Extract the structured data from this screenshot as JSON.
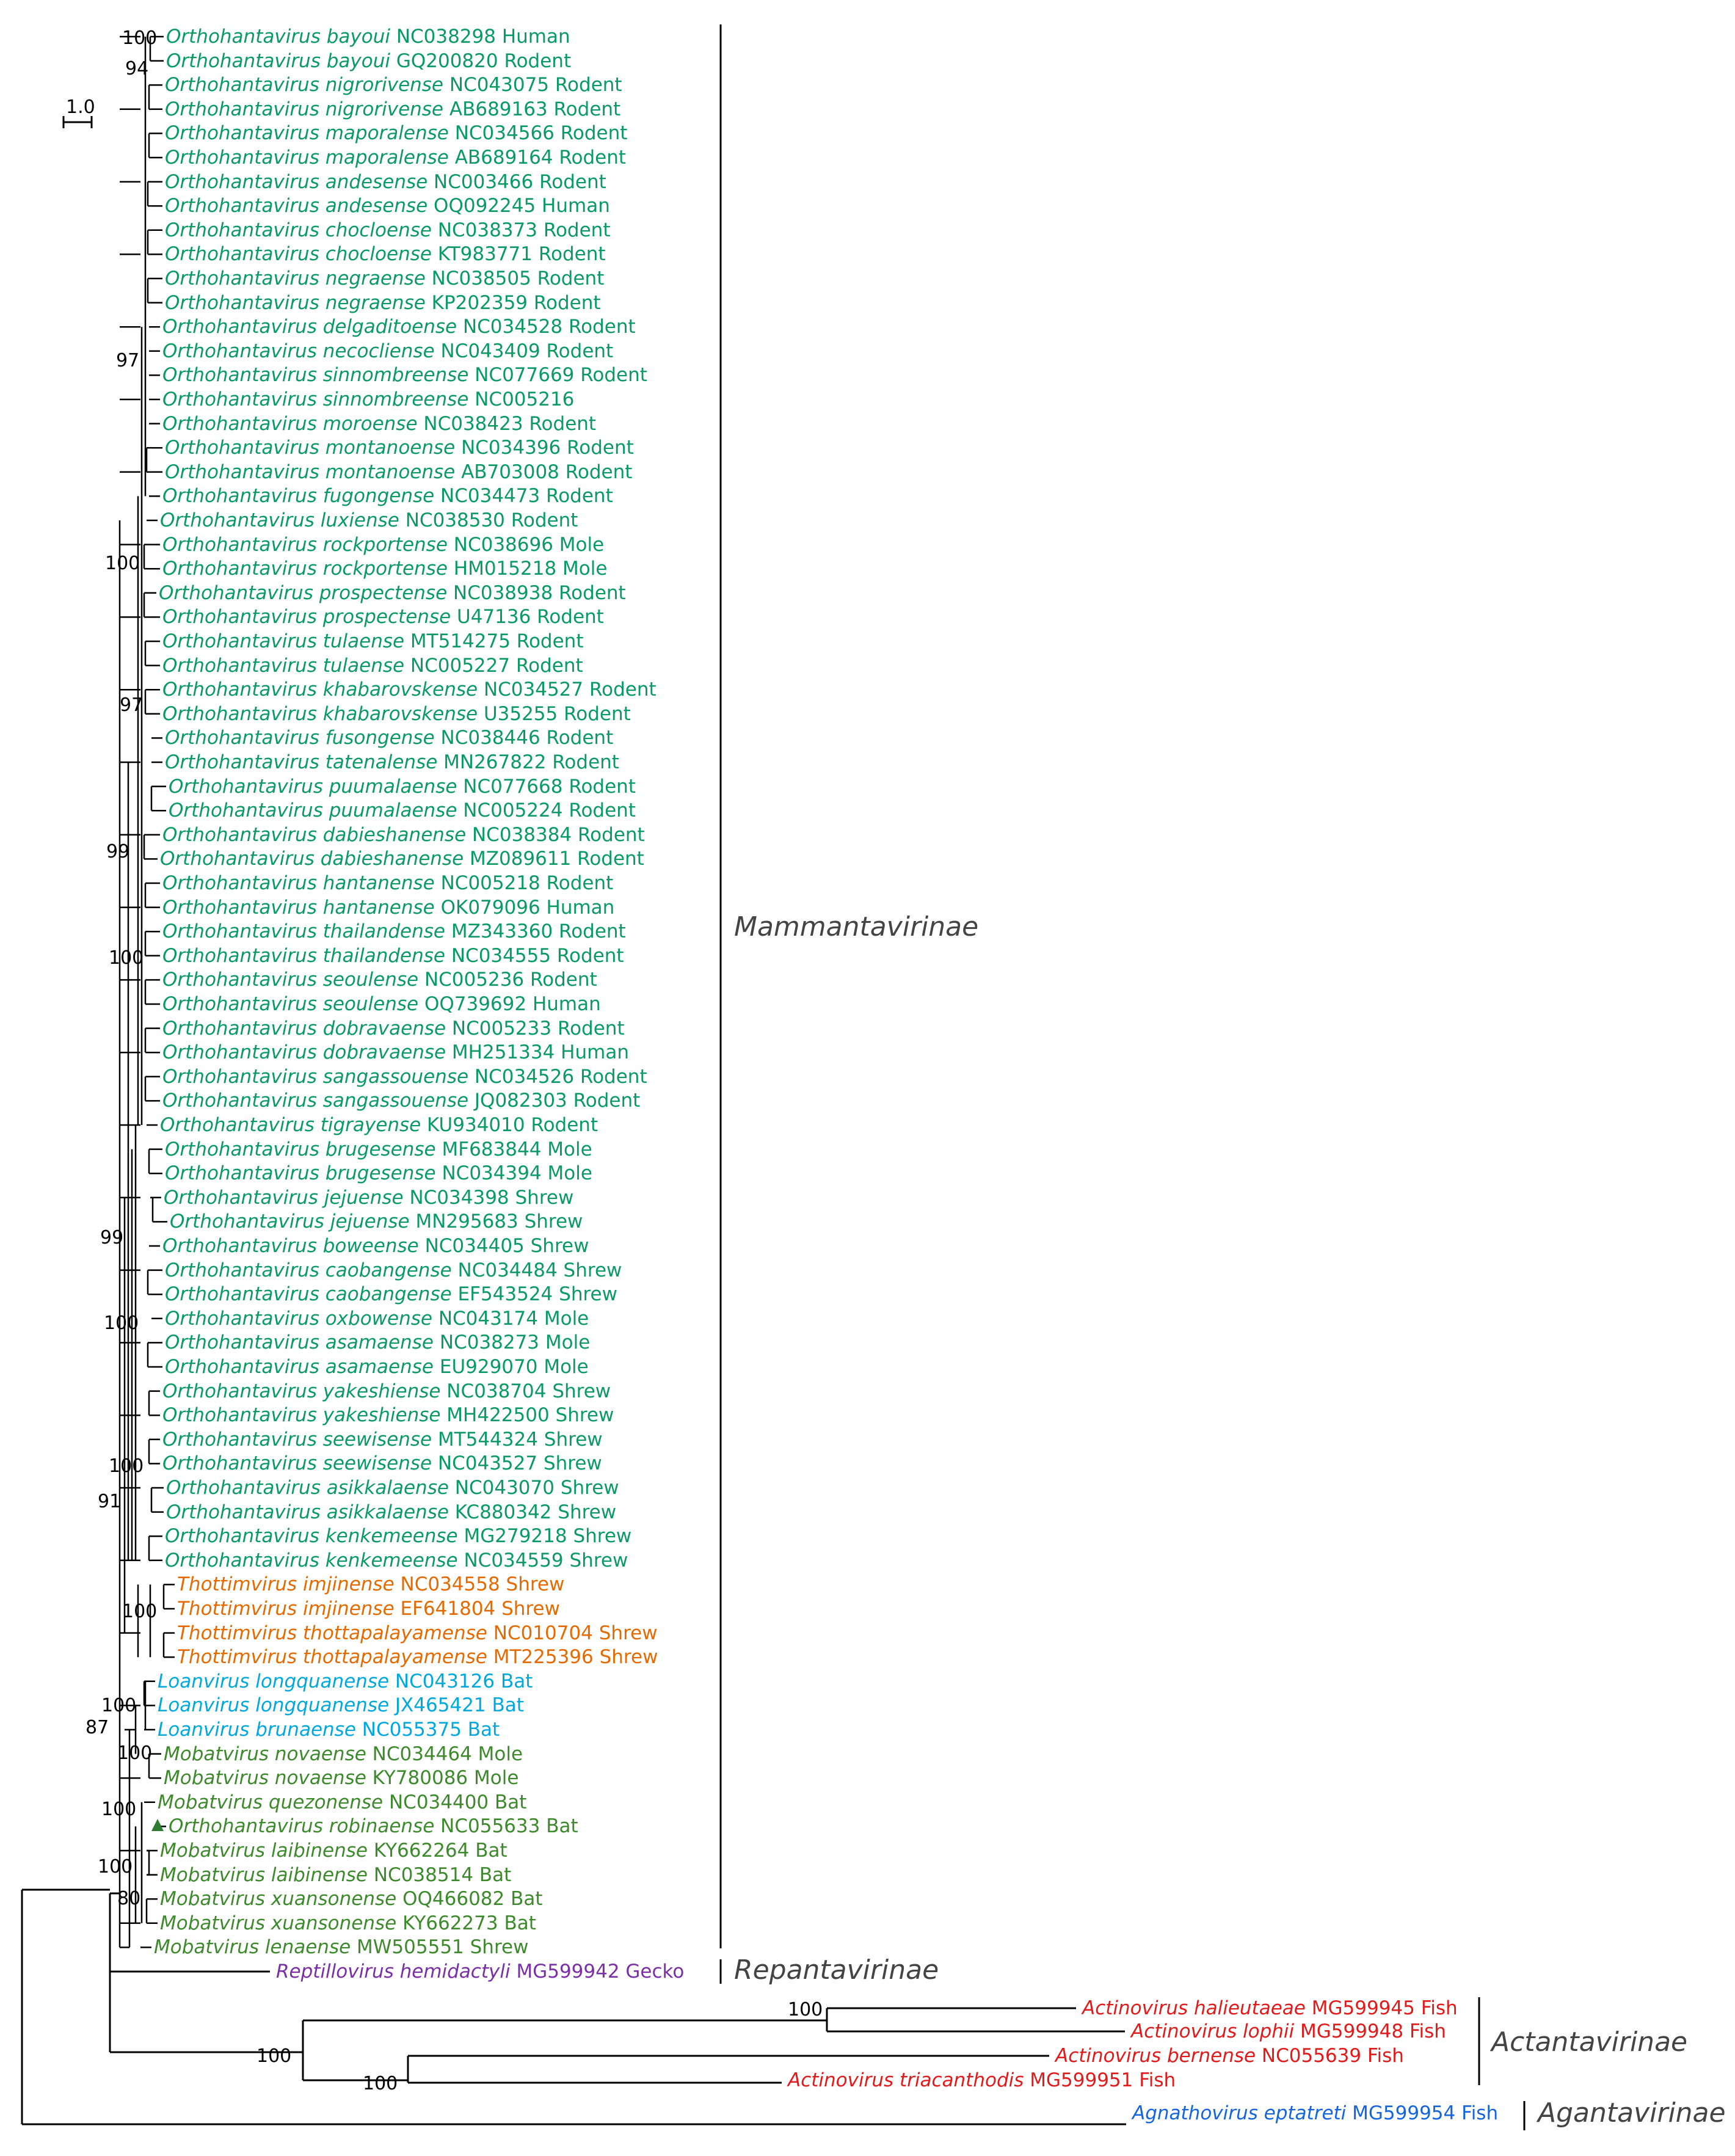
{
  "colors": {
    "Mammantavirinae_orthohantavirus": "#0a9a63",
    "thottimvirus": "#e66a00",
    "loanvirus": "#00a8e0",
    "mobatvirus": "#3d8a2c",
    "reptillovirus": "#7a2fa8",
    "actinovirus": "#e21a1a",
    "agnathovirus": "#1565e0",
    "branch": "#000000"
  },
  "scale_bar": {
    "label": "1.0"
  },
  "taxa": [
    {
      "sp": "Orthohantavirus bayoui",
      "acc": "NC038298 Human",
      "group": "Mammantavirinae_orthohantavirus"
    },
    {
      "sp": "Orthohantavirus bayoui",
      "acc": "GQ200820 Rodent",
      "group": "Mammantavirinae_orthohantavirus"
    },
    {
      "sp": "Orthohantavirus nigrorivense",
      "acc": "NC043075 Rodent",
      "group": "Mammantavirinae_orthohantavirus"
    },
    {
      "sp": "Orthohantavirus nigrorivense",
      "acc": "AB689163 Rodent",
      "group": "Mammantavirinae_orthohantavirus"
    },
    {
      "sp": "Orthohantavirus maporalense",
      "acc": "NC034566 Rodent",
      "group": "Mammantavirinae_orthohantavirus"
    },
    {
      "sp": "Orthohantavirus maporalense",
      "acc": "AB689164 Rodent",
      "group": "Mammantavirinae_orthohantavirus"
    },
    {
      "sp": "Orthohantavirus andesense",
      "acc": "NC003466 Rodent",
      "group": "Mammantavirinae_orthohantavirus"
    },
    {
      "sp": "Orthohantavirus andesense",
      "acc": "OQ092245 Human",
      "group": "Mammantavirinae_orthohantavirus"
    },
    {
      "sp": "Orthohantavirus chocloense",
      "acc": "NC038373 Rodent",
      "group": "Mammantavirinae_orthohantavirus"
    },
    {
      "sp": "Orthohantavirus chocloense",
      "acc": "KT983771 Rodent",
      "group": "Mammantavirinae_orthohantavirus"
    },
    {
      "sp": "Orthohantavirus negraense",
      "acc": "NC038505 Rodent",
      "group": "Mammantavirinae_orthohantavirus"
    },
    {
      "sp": "Orthohantavirus negraense",
      "acc": "KP202359 Rodent",
      "group": "Mammantavirinae_orthohantavirus"
    },
    {
      "sp": "Orthohantavirus delgaditoense",
      "acc": "NC034528 Rodent",
      "group": "Mammantavirinae_orthohantavirus"
    },
    {
      "sp": "Orthohantavirus necocliense",
      "acc": "NC043409 Rodent",
      "group": "Mammantavirinae_orthohantavirus"
    },
    {
      "sp": "Orthohantavirus sinnombreense",
      "acc": "NC077669 Rodent",
      "group": "Mammantavirinae_orthohantavirus"
    },
    {
      "sp": "Orthohantavirus sinnombreense",
      "acc": "NC005216",
      "group": "Mammantavirinae_orthohantavirus"
    },
    {
      "sp": "Orthohantavirus moroense",
      "acc": "NC038423 Rodent",
      "group": "Mammantavirinae_orthohantavirus"
    },
    {
      "sp": "Orthohantavirus montanoense",
      "acc": "NC034396 Rodent",
      "group": "Mammantavirinae_orthohantavirus"
    },
    {
      "sp": "Orthohantavirus montanoense",
      "acc": "AB703008 Rodent",
      "group": "Mammantavirinae_orthohantavirus"
    },
    {
      "sp": "Orthohantavirus fugongense",
      "acc": "NC034473 Rodent",
      "group": "Mammantavirinae_orthohantavirus"
    },
    {
      "sp": "Orthohantavirus luxiense",
      "acc": "NC038530 Rodent",
      "group": "Mammantavirinae_orthohantavirus"
    },
    {
      "sp": "Orthohantavirus rockportense",
      "acc": "NC038696 Mole",
      "group": "Mammantavirinae_orthohantavirus"
    },
    {
      "sp": "Orthohantavirus rockportense",
      "acc": "HM015218 Mole",
      "group": "Mammantavirinae_orthohantavirus"
    },
    {
      "sp": "Orthohantavirus prospectense",
      "acc": "NC038938 Rodent",
      "group": "Mammantavirinae_orthohantavirus"
    },
    {
      "sp": "Orthohantavirus prospectense",
      "acc": "U47136 Rodent",
      "group": "Mammantavirinae_orthohantavirus"
    },
    {
      "sp": "Orthohantavirus tulaense",
      "acc": "MT514275 Rodent",
      "group": "Mammantavirinae_orthohantavirus"
    },
    {
      "sp": "Orthohantavirus tulaense",
      "acc": "NC005227 Rodent",
      "group": "Mammantavirinae_orthohantavirus"
    },
    {
      "sp": "Orthohantavirus khabarovskense",
      "acc": "NC034527 Rodent",
      "group": "Mammantavirinae_orthohantavirus"
    },
    {
      "sp": "Orthohantavirus khabarovskense",
      "acc": "U35255 Rodent",
      "group": "Mammantavirinae_orthohantavirus"
    },
    {
      "sp": "Orthohantavirus fusongense",
      "acc": "NC038446 Rodent",
      "group": "Mammantavirinae_orthohantavirus"
    },
    {
      "sp": "Orthohantavirus tatenalense",
      "acc": "MN267822 Rodent",
      "group": "Mammantavirinae_orthohantavirus"
    },
    {
      "sp": "Orthohantavirus puumalaense",
      "acc": "NC077668 Rodent",
      "group": "Mammantavirinae_orthohantavirus"
    },
    {
      "sp": "Orthohantavirus puumalaense",
      "acc": "NC005224 Rodent",
      "group": "Mammantavirinae_orthohantavirus"
    },
    {
      "sp": "Orthohantavirus dabieshanense",
      "acc": "NC038384 Rodent",
      "group": "Mammantavirinae_orthohantavirus"
    },
    {
      "sp": "Orthohantavirus dabieshanense",
      "acc": "MZ089611 Rodent",
      "group": "Mammantavirinae_orthohantavirus"
    },
    {
      "sp": "Orthohantavirus hantanense",
      "acc": "NC005218 Rodent",
      "group": "Mammantavirinae_orthohantavirus"
    },
    {
      "sp": "Orthohantavirus hantanense",
      "acc": "OK079096 Human",
      "group": "Mammantavirinae_orthohantavirus"
    },
    {
      "sp": "Orthohantavirus thailandense",
      "acc": "MZ343360 Rodent",
      "group": "Mammantavirinae_orthohantavirus"
    },
    {
      "sp": "Orthohantavirus thailandense",
      "acc": "NC034555 Rodent",
      "group": "Mammantavirinae_orthohantavirus"
    },
    {
      "sp": "Orthohantavirus seoulense",
      "acc": "NC005236 Rodent",
      "group": "Mammantavirinae_orthohantavirus"
    },
    {
      "sp": "Orthohantavirus seoulense",
      "acc": "OQ739692 Human",
      "group": "Mammantavirinae_orthohantavirus"
    },
    {
      "sp": "Orthohantavirus dobravaense",
      "acc": "NC005233 Rodent",
      "group": "Mammantavirinae_orthohantavirus"
    },
    {
      "sp": "Orthohantavirus dobravaense",
      "acc": "MH251334 Human",
      "group": "Mammantavirinae_orthohantavirus"
    },
    {
      "sp": "Orthohantavirus sangassouense",
      "acc": "NC034526 Rodent",
      "group": "Mammantavirinae_orthohantavirus"
    },
    {
      "sp": "Orthohantavirus sangassouense",
      "acc": "JQ082303 Rodent",
      "group": "Mammantavirinae_orthohantavirus"
    },
    {
      "sp": "Orthohantavirus tigrayense",
      "acc": "KU934010 Rodent",
      "group": "Mammantavirinae_orthohantavirus"
    },
    {
      "sp": "Orthohantavirus brugesense",
      "acc": "MF683844 Mole",
      "group": "Mammantavirinae_orthohantavirus"
    },
    {
      "sp": "Orthohantavirus brugesense",
      "acc": "NC034394 Mole",
      "group": "Mammantavirinae_orthohantavirus"
    },
    {
      "sp": "Orthohantavirus jejuense",
      "acc": "NC034398 Shrew",
      "group": "Mammantavirinae_orthohantavirus"
    },
    {
      "sp": "Orthohantavirus jejuense",
      "acc": "MN295683 Shrew",
      "group": "Mammantavirinae_orthohantavirus"
    },
    {
      "sp": "Orthohantavirus boweense",
      "acc": "NC034405 Shrew",
      "group": "Mammantavirinae_orthohantavirus"
    },
    {
      "sp": "Orthohantavirus caobangense",
      "acc": "NC034484 Shrew",
      "group": "Mammantavirinae_orthohantavirus"
    },
    {
      "sp": "Orthohantavirus caobangense",
      "acc": "EF543524 Shrew",
      "group": "Mammantavirinae_orthohantavirus"
    },
    {
      "sp": "Orthohantavirus oxbowense",
      "acc": "NC043174 Mole",
      "group": "Mammantavirinae_orthohantavirus"
    },
    {
      "sp": "Orthohantavirus asamaense",
      "acc": "NC038273 Mole",
      "group": "Mammantavirinae_orthohantavirus"
    },
    {
      "sp": "Orthohantavirus asamaense",
      "acc": "EU929070 Mole",
      "group": "Mammantavirinae_orthohantavirus"
    },
    {
      "sp": "Orthohantavirus yakeshiense",
      "acc": "NC038704 Shrew",
      "group": "Mammantavirinae_orthohantavirus"
    },
    {
      "sp": "Orthohantavirus yakeshiense",
      "acc": "MH422500 Shrew",
      "group": "Mammantavirinae_orthohantavirus"
    },
    {
      "sp": "Orthohantavirus seewisense",
      "acc": "MT544324 Shrew",
      "group": "Mammantavirinae_orthohantavirus"
    },
    {
      "sp": "Orthohantavirus seewisense",
      "acc": "NC043527 Shrew",
      "group": "Mammantavirinae_orthohantavirus"
    },
    {
      "sp": "Orthohantavirus asikkalaense",
      "acc": "NC043070 Shrew",
      "group": "Mammantavirinae_orthohantavirus"
    },
    {
      "sp": "Orthohantavirus asikkalaense",
      "acc": "KC880342 Shrew",
      "group": "Mammantavirinae_orthohantavirus"
    },
    {
      "sp": "Orthohantavirus kenkemeense",
      "acc": "MG279218 Shrew",
      "group": "Mammantavirinae_orthohantavirus"
    },
    {
      "sp": "Orthohantavirus kenkemeense",
      "acc": "NC034559 Shrew",
      "group": "Mammantavirinae_orthohantavirus"
    },
    {
      "sp": "Thottimvirus imjinense",
      "acc": "NC034558 Shrew",
      "group": "thottimvirus"
    },
    {
      "sp": "Thottimvirus imjinense",
      "acc": "EF641804 Shrew",
      "group": "thottimvirus"
    },
    {
      "sp": "Thottimvirus thottapalayamense",
      "acc": "NC010704 Shrew",
      "group": "thottimvirus"
    },
    {
      "sp": "Thottimvirus thottapalayamense",
      "acc": "MT225396 Shrew",
      "group": "thottimvirus"
    },
    {
      "sp": "Loanvirus longquanense",
      "acc": "NC043126 Bat",
      "group": "loanvirus"
    },
    {
      "sp": "Loanvirus longquanense",
      "acc": "JX465421 Bat",
      "group": "loanvirus"
    },
    {
      "sp": "Loanvirus brunaense",
      "acc": "NC055375 Bat",
      "group": "loanvirus"
    },
    {
      "sp": "Mobatvirus novaense",
      "acc": "NC034464 Mole",
      "group": "mobatvirus"
    },
    {
      "sp": "Mobatvirus novaense",
      "acc": "KY780086 Mole",
      "group": "mobatvirus"
    },
    {
      "sp": "Mobatvirus quezonense",
      "acc": "NC034400 Bat",
      "group": "mobatvirus"
    },
    {
      "sp": "Orthohantavirus robinaense",
      "acc": "NC055633 Bat",
      "group": "mobatvirus",
      "marker": "triangle"
    },
    {
      "sp": "Mobatvirus laibinense",
      "acc": "KY662264 Bat",
      "group": "mobatvirus"
    },
    {
      "sp": "Mobatvirus laibinense",
      "acc": "NC038514 Bat",
      "group": "mobatvirus"
    },
    {
      "sp": "Mobatvirus xuansonense",
      "acc": "OQ466082 Bat",
      "group": "mobatvirus"
    },
    {
      "sp": "Mobatvirus xuansonense",
      "acc": "KY662273 Bat",
      "group": "mobatvirus"
    },
    {
      "sp": "Mobatvirus lenaense",
      "acc": "MW505551 Shrew",
      "group": "mobatvirus"
    },
    {
      "sp": "Reptillovirus hemidactyli",
      "acc": "MG599942 Gecko",
      "group": "reptillovirus"
    },
    {
      "sp": "Actinovirus halieutaeae",
      "acc": "MG599945 Fish",
      "group": "actinovirus"
    },
    {
      "sp": "Actinovirus lophii ",
      "acc": "MG599948 Fish",
      "group": "actinovirus"
    },
    {
      "sp": "Actinovirus bernense",
      "acc": "NC055639 Fish",
      "group": "actinovirus"
    },
    {
      "sp": "Actinovirus triacanthodis",
      "acc": "MG599951 Fish",
      "group": "actinovirus"
    },
    {
      "sp": "Agnathovirus eptatreti",
      "acc": "MG599954 Fish",
      "group": "agnathovirus"
    }
  ],
  "bootstrap": [
    "100",
    "94",
    "97",
    "100",
    "97",
    "99",
    "100",
    "99",
    "100",
    "100",
    "91",
    "100",
    "100",
    "87",
    "100",
    "100",
    "100",
    "80",
    "100",
    "100",
    "100"
  ],
  "subfamilies": [
    "Mammantavirinae",
    "Repantavirinae",
    "Actantavirinae",
    "Agantavirinae"
  ]
}
